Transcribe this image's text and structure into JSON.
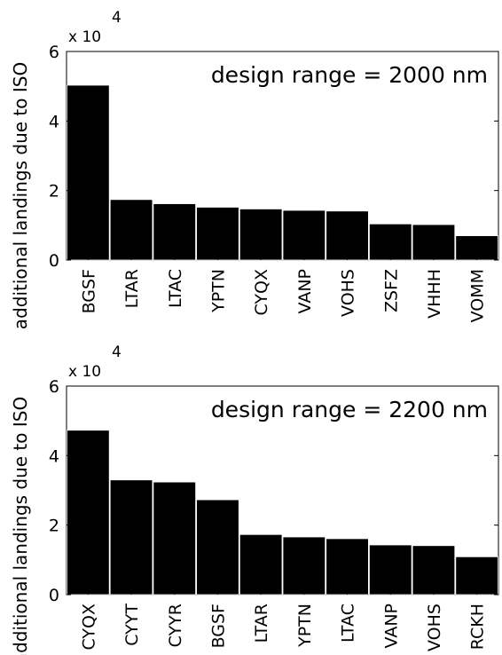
{
  "chart_data": [
    {
      "type": "bar",
      "title": "design range = 2000 nm",
      "xlabel": "",
      "ylabel": "additional landings due to ISO",
      "scale_label": "x 10",
      "scale_exponent": "4",
      "ylim": [
        0,
        6
      ],
      "yticks": [
        "0",
        "2",
        "4",
        "6"
      ],
      "grid": false,
      "bar_color": "#000000",
      "categories": [
        "BGSF",
        "LTAR",
        "LTAC",
        "YPTN",
        "CYQX",
        "VANP",
        "VOHS",
        "ZSFZ",
        "VHHH",
        "VOMM"
      ],
      "values": [
        5.03,
        1.74,
        1.62,
        1.52,
        1.47,
        1.43,
        1.41,
        1.04,
        1.02,
        0.7
      ]
    },
    {
      "type": "bar",
      "title": "design range = 2200 nm",
      "xlabel": "",
      "ylabel": "additional landings due to ISO",
      "scale_label": "x 10",
      "scale_exponent": "4",
      "ylim": [
        0,
        6
      ],
      "yticks": [
        "0",
        "2",
        "4",
        "6"
      ],
      "grid": false,
      "bar_color": "#000000",
      "categories": [
        "CYQX",
        "CYYT",
        "CYYR",
        "BGSF",
        "LTAR",
        "YPTN",
        "LTAC",
        "VANP",
        "VOHS",
        "RCKH"
      ],
      "values": [
        4.73,
        3.3,
        3.24,
        2.73,
        1.73,
        1.66,
        1.61,
        1.43,
        1.41,
        1.09
      ]
    }
  ]
}
